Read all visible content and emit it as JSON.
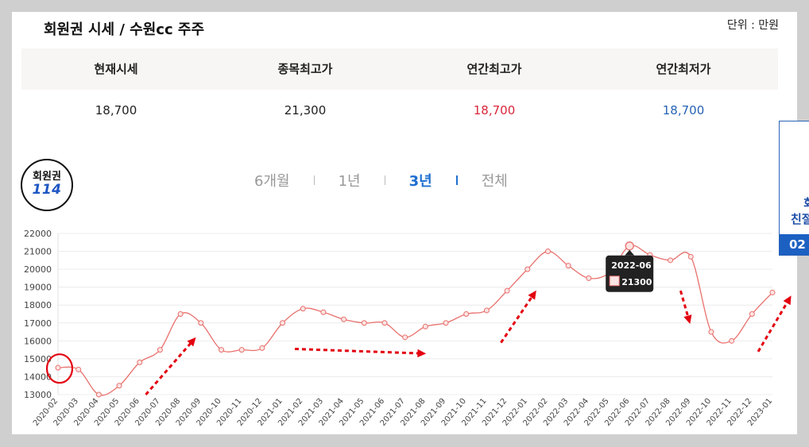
{
  "header": {
    "title": "회원권 시세 / 수원cc 주주",
    "unit": "단위 : 만원"
  },
  "stats": {
    "labels": [
      "현재시세",
      "종목최고가",
      "연간최고가",
      "연간최저가"
    ],
    "values": [
      "18,700",
      "21,300",
      "18,700",
      "18,700"
    ]
  },
  "logo": {
    "line1": "회원권",
    "line2": "114"
  },
  "range_tabs": [
    {
      "label": "6개월",
      "active": false
    },
    {
      "label": "1년",
      "active": false
    },
    {
      "label": "3년",
      "active": true
    },
    {
      "label": "전체",
      "active": false
    }
  ],
  "side_banner": {
    "line1": "회",
    "line2": "친절",
    "badge": "02"
  },
  "chart_data": {
    "type": "line",
    "x": [
      "2020-02",
      "2020-03",
      "2020-04",
      "2020-05",
      "2020-06",
      "2020-07",
      "2020-08",
      "2020-09",
      "2020-10",
      "2020-11",
      "2020-12",
      "2021-01",
      "2021-02",
      "2021-03",
      "2021-04",
      "2021-05",
      "2021-06",
      "2021-07",
      "2021-08",
      "2021-09",
      "2021-10",
      "2021-11",
      "2021-12",
      "2022-01",
      "2022-02",
      "2022-03",
      "2022-04",
      "2022-05",
      "2022-06",
      "2022-07",
      "2022-08",
      "2022-09",
      "2022-10",
      "2022-11",
      "2022-12",
      "2023-01"
    ],
    "series": [
      {
        "values": [
          14500,
          14400,
          13000,
          13500,
          14800,
          15500,
          17500,
          17000,
          15500,
          15500,
          15600,
          17000,
          17800,
          17600,
          17200,
          17000,
          17000,
          16200,
          16800,
          17000,
          17500,
          17700,
          18800,
          20000,
          21000,
          20200,
          19500,
          19800,
          21300,
          20800,
          20500,
          20700,
          16500,
          16000,
          17500,
          18700
        ]
      }
    ],
    "ylim": [
      13000,
      22000
    ],
    "yticks": [
      13000,
      14000,
      15000,
      16000,
      17000,
      18000,
      19000,
      20000,
      21000,
      22000
    ],
    "grid": true,
    "line_color": "#e8706d",
    "tooltip": {
      "label": "2022-06",
      "value": "21300"
    }
  }
}
